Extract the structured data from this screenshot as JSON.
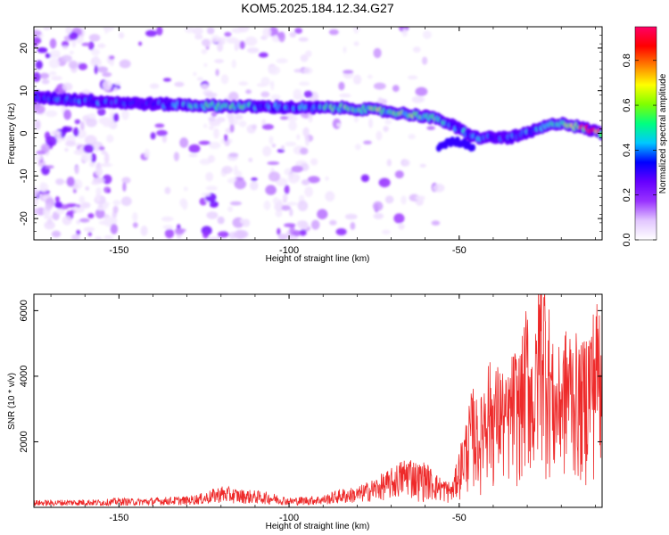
{
  "title": "KOM5.2025.184.12.34.G27",
  "chart_data": [
    {
      "type": "heatmap",
      "xlabel": "Height of straight line (km)",
      "ylabel": "Frequency (Hz)",
      "xlim": [
        -175,
        -8
      ],
      "ylim": [
        -25,
        25
      ],
      "xticks": [
        -150,
        -100,
        -50
      ],
      "yticks": [
        20,
        10,
        0,
        -10,
        -20
      ],
      "colorbar": {
        "label": "Normalized spectral amplitude",
        "range": [
          0,
          0.95
        ],
        "ticks": [
          "0.0",
          "0.2",
          "0.4",
          "0.6",
          "0.8"
        ],
        "colors": [
          "#ffffff",
          "#e2c6ff",
          "#9933ff",
          "#6600ff",
          "#0000ff",
          "#00c8ff",
          "#00ff80",
          "#80ff00",
          "#ffff00",
          "#ff8000",
          "#ff0000",
          "#ff0066"
        ]
      },
      "ridge": {
        "x": [
          -175,
          -165,
          -155,
          -145,
          -135,
          -125,
          -115,
          -105,
          -95,
          -85,
          -75,
          -65,
          -60,
          -55,
          -50,
          -48,
          -45,
          -40,
          -35,
          -30,
          -25,
          -20,
          -15,
          -10,
          -8
        ],
        "frequency": [
          8.5,
          8,
          7.5,
          7,
          6.8,
          6.5,
          6.3,
          6.2,
          6,
          6,
          5.5,
          4.5,
          4,
          3,
          1,
          0,
          -1,
          -1,
          -1,
          0,
          1.5,
          2.5,
          1.5,
          0.5,
          0
        ],
        "amplitude": [
          0.3,
          0.35,
          0.35,
          0.3,
          0.35,
          0.45,
          0.5,
          0.35,
          0.4,
          0.5,
          0.55,
          0.5,
          0.55,
          0.45,
          0.35,
          0.45,
          0.4,
          0.3,
          0.35,
          0.4,
          0.4,
          0.5,
          0.6,
          0.9,
          0.5
        ]
      }
    },
    {
      "type": "line",
      "xlabel": "Height of straight line (km)",
      "ylabel": "SNR (10 * v/v)",
      "xlim": [
        -175,
        -8
      ],
      "ylim": [
        0,
        6500
      ],
      "xticks": [
        -150,
        -100,
        -50
      ],
      "yticks": [
        2000,
        4000,
        6000
      ],
      "color": "#ee2a2a",
      "x": [
        -175,
        -170,
        -165,
        -160,
        -155,
        -150,
        -145,
        -140,
        -135,
        -130,
        -125,
        -120,
        -115,
        -110,
        -105,
        -100,
        -95,
        -90,
        -85,
        -80,
        -75,
        -70,
        -65,
        -62,
        -60,
        -57,
        -55,
        -52,
        -50,
        -48,
        -46,
        -44,
        -42,
        -40,
        -38,
        -36,
        -34,
        -32,
        -30,
        -28,
        -26,
        -24,
        -22,
        -20,
        -18,
        -16,
        -14,
        -12,
        -10,
        -8
      ],
      "y": [
        150,
        150,
        160,
        170,
        160,
        200,
        180,
        200,
        220,
        230,
        300,
        450,
        380,
        350,
        300,
        200,
        230,
        250,
        380,
        420,
        600,
        800,
        1100,
        900,
        950,
        700,
        600,
        500,
        1200,
        1800,
        2500,
        2000,
        3200,
        2800,
        3000,
        2600,
        3300,
        3200,
        4300,
        3000,
        5600,
        4500,
        3000,
        3400,
        3800,
        3600,
        3300,
        3900,
        4200,
        4700
      ]
    }
  ]
}
